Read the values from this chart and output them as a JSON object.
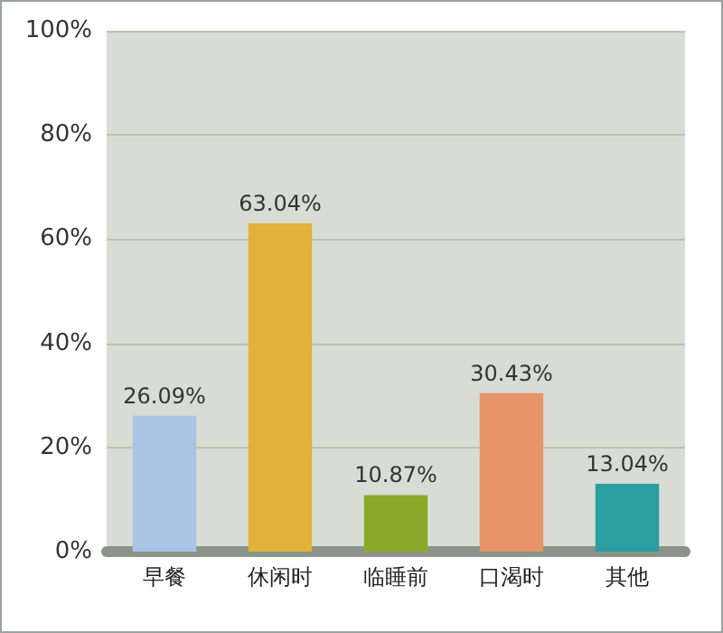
{
  "chart_data": {
    "type": "bar",
    "categories": [
      "早餐",
      "休闲时",
      "临睡前",
      "口渴时",
      "其他"
    ],
    "values": [
      26.09,
      63.04,
      10.87,
      30.43,
      13.04
    ],
    "colors": [
      "#a9c4e4",
      "#e2b23a",
      "#8aab2a",
      "#e8946a",
      "#2a9ea0"
    ],
    "value_labels": [
      "26.09%",
      "63.04%",
      "10.87%",
      "30.43%",
      "13.04%"
    ],
    "ylim": [
      0,
      100
    ],
    "yticks": [
      {
        "value": 0,
        "label": "0%"
      },
      {
        "value": 20,
        "label": "20%"
      },
      {
        "value": 40,
        "label": "40%"
      },
      {
        "value": 60,
        "label": "60%"
      },
      {
        "value": 80,
        "label": "80%"
      },
      {
        "value": 100,
        "label": "100%"
      }
    ],
    "grid": "y"
  }
}
